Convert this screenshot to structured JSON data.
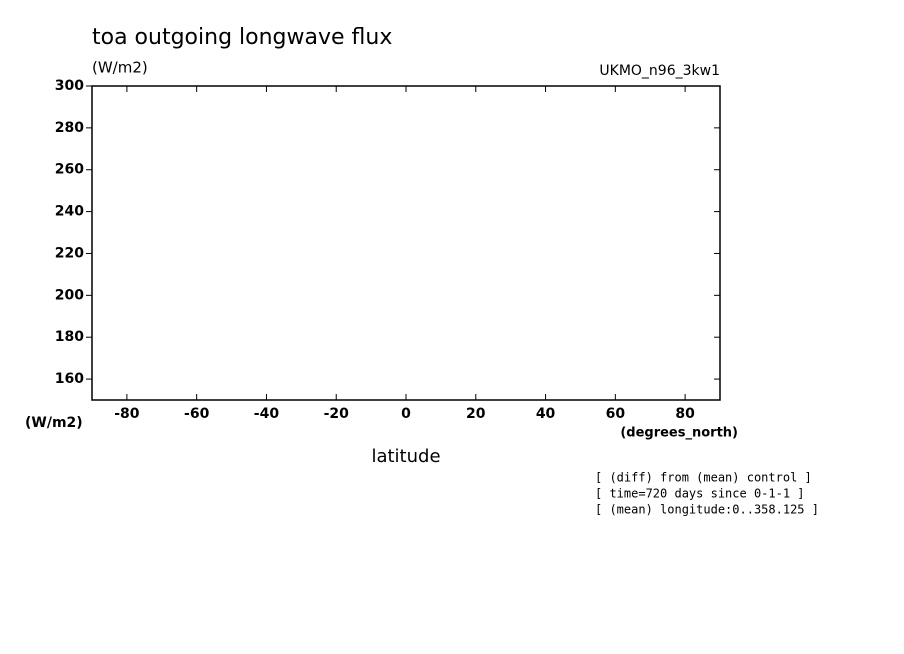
{
  "chart_data": {
    "type": "line",
    "title": "toa outgoing longwave flux",
    "units": "(W/m2)",
    "dataset": "UKMO_n96_3kw1",
    "y_units": "(W/m2)",
    "x_units": "(degrees_north)",
    "x_label": "latitude",
    "notes": [
      "[ (diff) from (mean) control ]",
      "[ time=720 days since 0-1-1 ]",
      "[ (mean) longitude:0..358.125 ]"
    ],
    "xlim": [
      -90,
      90
    ],
    "ylim": [
      150,
      300
    ],
    "xticks": [
      -80,
      -60,
      -40,
      -20,
      0,
      20,
      40,
      60,
      80
    ],
    "yticks": [
      160,
      180,
      200,
      220,
      240,
      260,
      280,
      300
    ],
    "series": []
  }
}
